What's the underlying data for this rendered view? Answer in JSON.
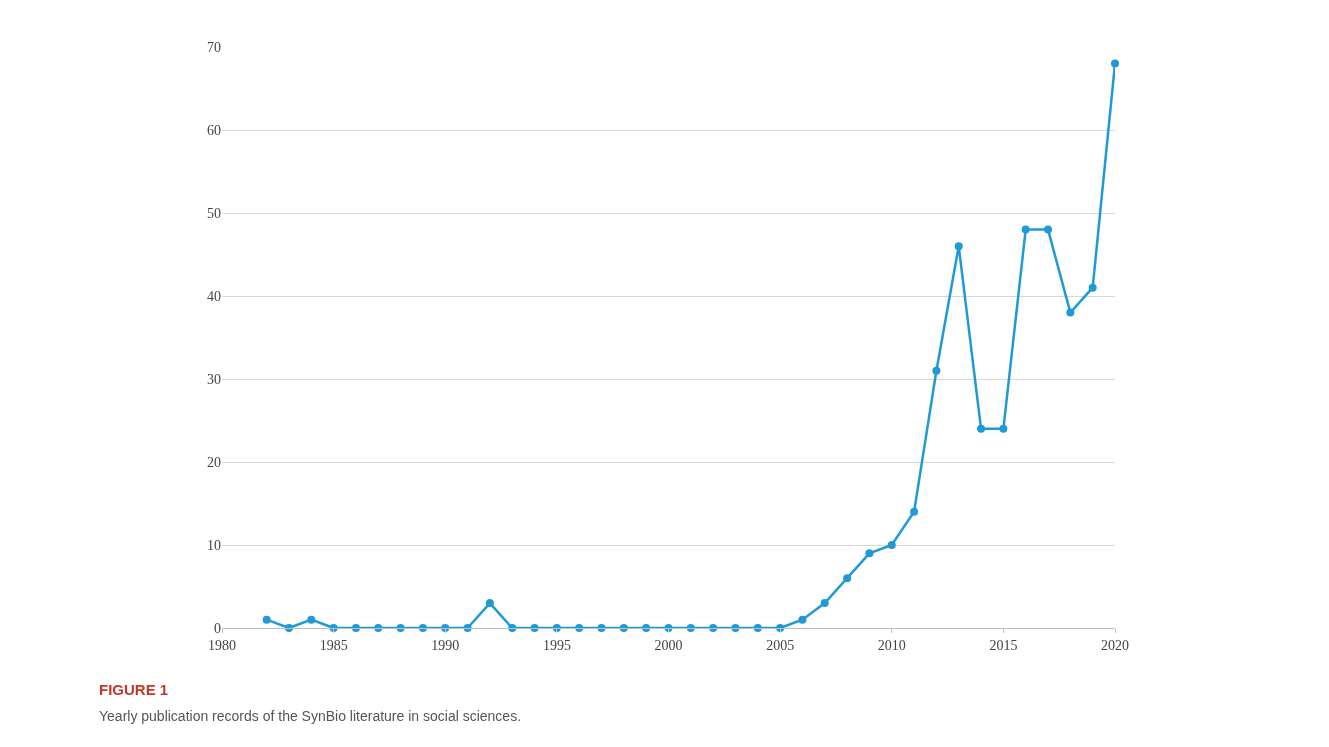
{
  "chart_data": {
    "type": "line",
    "x": [
      1982,
      1983,
      1984,
      1985,
      1986,
      1987,
      1988,
      1989,
      1990,
      1991,
      1992,
      1993,
      1994,
      1995,
      1996,
      1997,
      1998,
      1999,
      2000,
      2001,
      2002,
      2003,
      2004,
      2005,
      2006,
      2007,
      2008,
      2009,
      2010,
      2011,
      2012,
      2013,
      2014,
      2015,
      2016,
      2017,
      2018,
      2019,
      2020
    ],
    "series": [
      {
        "color": "#1f9ad6",
        "values": [
          1,
          0,
          1,
          0,
          0,
          0,
          0,
          0,
          0,
          0,
          3,
          0,
          0,
          0,
          0,
          0,
          0,
          0,
          0,
          0,
          0,
          0,
          0,
          0,
          1,
          3,
          6,
          9,
          10,
          14,
          31,
          46,
          24,
          24,
          48,
          48,
          38,
          41,
          68
        ]
      }
    ],
    "xlim": [
      1980,
      2020
    ],
    "xticks": [
      1980,
      1985,
      1990,
      1995,
      2000,
      2005,
      2010,
      2015,
      2020
    ],
    "ylim": [
      0,
      70
    ],
    "yticks": [
      0,
      10,
      20,
      30,
      40,
      50,
      60,
      70
    ],
    "grid": "y",
    "legend": false,
    "marker": "circle",
    "line_style": "solid",
    "annotations": [
      "FIGURE 1",
      "Yearly publication records of the SynBio literature in social sciences."
    ]
  }
}
